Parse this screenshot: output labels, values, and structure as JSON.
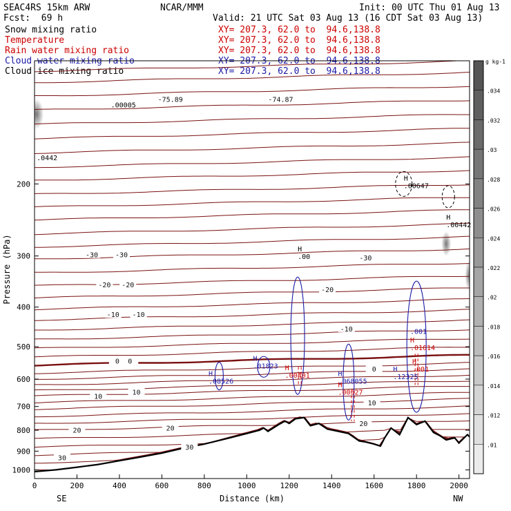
{
  "header": {
    "model": "SEAC4RS 15km ARW",
    "source": "NCAR/MMM",
    "init": "Init: 00 UTC Thu 01 Aug 13",
    "fcst": "Fcst:  69 h",
    "valid": "Valid: 21 UTC Sat 03 Aug 13 (16 CDT Sat 03 Aug 13)",
    "fields": [
      {
        "name": "Snow mixing ratio",
        "xy": "XY= 207.3, 62.0 to  94.6,138.8",
        "color": "#000000"
      },
      {
        "name": "Temperature",
        "xy": "XY= 207.3, 62.0 to  94.6,138.8",
        "color": "#cc0000"
      },
      {
        "name": "Rain water mixing ratio",
        "xy": "XY= 207.3, 62.0 to  94.6,138.8",
        "color": "#cc0000"
      },
      {
        "name": "Cloud water mixing ratio",
        "xy": "XY= 207.3, 62.0 to  94.6,138.8",
        "color": "#1a1aa6"
      },
      {
        "name": "Cloud ice mixing ratio",
        "xy": "XY= 207.3, 62.0 to  94.6,138.8",
        "color": "#000000"
      }
    ]
  },
  "chart_data": {
    "type": "cross-section",
    "xlabel": "Distance (km)",
    "ylabel": "Pressure (hPa)",
    "xlim": [
      0,
      2050
    ],
    "ylim": [
      1050,
      100
    ],
    "y_scale": "log",
    "x_ticks": [
      0,
      200,
      400,
      600,
      800,
      1000,
      1200,
      1400,
      1600,
      1800,
      2000
    ],
    "y_ticks": [
      200,
      300,
      400,
      500,
      600,
      700,
      800,
      900,
      1000
    ],
    "x_end_labels": {
      "left": "SE",
      "right": "NW"
    },
    "colorbar": {
      "unit": "g kg-1",
      "levels": [
        ".01",
        ".012",
        ".014",
        ".016",
        ".018",
        ".02",
        ".022",
        ".024",
        ".026",
        ".028",
        ".03",
        ".032",
        ".034"
      ]
    },
    "isotherm_labels": [
      {
        "text": "-75.89",
        "x": 640,
        "p": 125
      },
      {
        "text": "-74.87",
        "x": 1160,
        "p": 125
      },
      {
        "text": "-30",
        "x": 270,
        "p": 300
      },
      {
        "text": "-30",
        "x": 410,
        "p": 300
      },
      {
        "text": "-30",
        "x": 1560,
        "p": 305
      },
      {
        "text": "-20",
        "x": 330,
        "p": 355
      },
      {
        "text": "-20",
        "x": 440,
        "p": 355
      },
      {
        "text": "-20",
        "x": 1380,
        "p": 365
      },
      {
        "text": "-10",
        "x": 370,
        "p": 420
      },
      {
        "text": "-10",
        "x": 490,
        "p": 420
      },
      {
        "text": "-10",
        "x": 1470,
        "p": 455
      },
      {
        "text": "0",
        "x": 390,
        "p": 545
      },
      {
        "text": "0",
        "x": 450,
        "p": 545
      },
      {
        "text": "0",
        "x": 1600,
        "p": 570
      },
      {
        "text": "10",
        "x": 300,
        "p": 665
      },
      {
        "text": "10",
        "x": 480,
        "p": 650
      },
      {
        "text": "10",
        "x": 1590,
        "p": 690
      },
      {
        "text": "20",
        "x": 200,
        "p": 805
      },
      {
        "text": "20",
        "x": 640,
        "p": 795
      },
      {
        "text": "20",
        "x": 1550,
        "p": 775
      },
      {
        "text": "30",
        "x": 730,
        "p": 885
      },
      {
        "text": "30",
        "x": 130,
        "p": 940
      }
    ],
    "extrema": [
      {
        "text": ".00005",
        "x": 360,
        "p": 130,
        "color": "#000000",
        "H": false
      },
      {
        "text": ".0442",
        "x": 10,
        "p": 175,
        "color": "#000000",
        "H": false
      },
      {
        "text": ".00647",
        "x": 1740,
        "p": 205,
        "color": "#000000",
        "H": true
      },
      {
        "text": ".00442",
        "x": 1940,
        "p": 255,
        "color": "#000000",
        "H": true
      },
      {
        "text": ".00",
        "x": 1240,
        "p": 305,
        "color": "#000000",
        "H": true
      },
      {
        "text": ".001",
        "x": 1770,
        "p": 465,
        "color": "#1a1aa6",
        "H": false
      },
      {
        "text": ".01614",
        "x": 1770,
        "p": 510,
        "color": "#cc0000",
        "H": true
      },
      {
        "text": ".001",
        "x": 1780,
        "p": 575,
        "color": "#cc0000",
        "H": true
      },
      {
        "text": ".12325",
        "x": 1690,
        "p": 600,
        "color": "#1a1aa6",
        "H": true
      },
      {
        "text": ".08526",
        "x": 820,
        "p": 615,
        "color": "#1a1aa6",
        "H": true
      },
      {
        "text": ".01823",
        "x": 1030,
        "p": 565,
        "color": "#1a1aa6",
        "H": true
      },
      {
        "text": ".00401",
        "x": 1180,
        "p": 595,
        "color": "#cc0000",
        "H": true
      },
      {
        "text": ".068055",
        "x": 1430,
        "p": 615,
        "color": "#1a1aa6",
        "H": true
      },
      {
        "text": ".00527",
        "x": 1430,
        "p": 655,
        "color": "#cc0000",
        "H": true
      }
    ],
    "terrain": [
      [
        0,
        1010
      ],
      [
        100,
        1000
      ],
      [
        200,
        985
      ],
      [
        300,
        970
      ],
      [
        400,
        950
      ],
      [
        500,
        930
      ],
      [
        600,
        910
      ],
      [
        700,
        885
      ],
      [
        800,
        865
      ],
      [
        900,
        840
      ],
      [
        1000,
        815
      ],
      [
        1060,
        800
      ],
      [
        1080,
        790
      ],
      [
        1100,
        805
      ],
      [
        1150,
        775
      ],
      [
        1180,
        760
      ],
      [
        1200,
        770
      ],
      [
        1230,
        750
      ],
      [
        1270,
        745
      ],
      [
        1300,
        780
      ],
      [
        1340,
        770
      ],
      [
        1380,
        795
      ],
      [
        1430,
        805
      ],
      [
        1480,
        815
      ],
      [
        1530,
        850
      ],
      [
        1560,
        855
      ],
      [
        1600,
        865
      ],
      [
        1630,
        875
      ],
      [
        1650,
        835
      ],
      [
        1680,
        790
      ],
      [
        1720,
        820
      ],
      [
        1760,
        745
      ],
      [
        1800,
        775
      ],
      [
        1840,
        760
      ],
      [
        1880,
        810
      ],
      [
        1910,
        825
      ],
      [
        1940,
        845
      ],
      [
        1980,
        835
      ],
      [
        2000,
        860
      ],
      [
        2040,
        820
      ],
      [
        2050,
        830
      ]
    ]
  }
}
